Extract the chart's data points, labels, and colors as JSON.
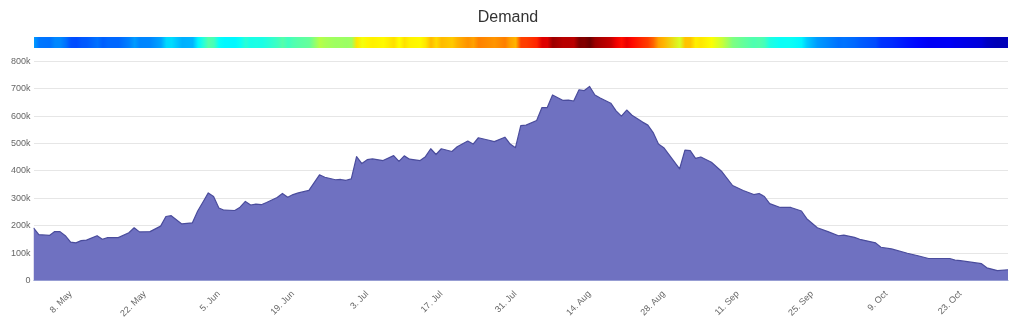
{
  "chart_data": {
    "type": "area",
    "title": "Demand",
    "x": [
      "--05-01",
      "--05-02",
      "--05-04",
      "--05-05",
      "--05-06",
      "--05-07",
      "--05-08",
      "--05-09",
      "--05-10",
      "--05-11",
      "--05-13",
      "--05-14",
      "--05-15",
      "--05-17",
      "--05-19",
      "--05-20",
      "--05-21",
      "--05-23",
      "--05-25",
      "--05-26",
      "--05-27",
      "--05-29",
      "--05-31",
      "--06-01",
      "--06-02",
      "--06-03",
      "--06-04",
      "--06-05",
      "--06-06",
      "--06-08",
      "--06-09",
      "--06-10",
      "--06-11",
      "--06-12",
      "--06-13",
      "--06-14",
      "--06-16",
      "--06-17",
      "--06-18",
      "--06-19",
      "--06-20",
      "--06-22",
      "--06-24",
      "--06-25",
      "--06-27",
      "--06-28",
      "--06-29",
      "--06-30",
      "--07-01",
      "--07-02",
      "--07-03",
      "--07-04",
      "--07-06",
      "--07-08",
      "--07-09",
      "--07-10",
      "--07-11",
      "--07-13",
      "--07-14",
      "--07-15",
      "--07-16",
      "--07-17",
      "--07-19",
      "--07-20",
      "--07-22",
      "--07-23",
      "--07-24",
      "--07-26",
      "--07-27",
      "--07-29",
      "--07-30",
      "--07-31",
      "--08-01",
      "--08-02",
      "--08-04",
      "--08-05",
      "--08-06",
      "--08-07",
      "--08-09",
      "--08-10",
      "--08-11",
      "--08-12",
      "--08-13",
      "--08-14",
      "--08-15",
      "--08-16",
      "--08-18",
      "--08-19",
      "--08-20",
      "--08-21",
      "--08-22",
      "--08-24",
      "--08-25",
      "--08-26",
      "--08-27",
      "--08-28",
      "--08-31",
      "--09-01",
      "--09-02",
      "--09-03",
      "--09-04",
      "--09-06",
      "--09-08",
      "--09-10",
      "--09-12",
      "--09-14",
      "--09-15",
      "--09-16",
      "--09-17",
      "--09-19",
      "--09-21",
      "--09-23",
      "--09-24",
      "--09-26",
      "--09-28",
      "--09-30",
      "--10-01",
      "--10-03",
      "--10-04",
      "--10-07",
      "--10-08",
      "--10-10",
      "--10-13",
      "--10-15",
      "--10-17",
      "--10-21",
      "--10-22",
      "--10-23",
      "--10-27",
      "--10-28",
      "--10-30",
      "--11-01"
    ],
    "series": [
      {
        "color": "#6f71c1",
        "values": [
          193000,
          168000,
          165000,
          179000,
          179000,
          164000,
          141000,
          138000,
          146000,
          148000,
          164000,
          151000,
          157000,
          157000,
          175000,
          193000,
          178000,
          179000,
          199000,
          234000,
          237000,
          207000,
          211000,
          254000,
          287000,
          320000,
          307000,
          265000,
          257000,
          256000,
          268000,
          289000,
          276000,
          279000,
          277000,
          285000,
          303000,
          318000,
          304000,
          314000,
          320000,
          329000,
          386000,
          377000,
          368000,
          369000,
          366000,
          371000,
          452000,
          427000,
          441000,
          444000,
          438000,
          456000,
          435000,
          455000,
          443000,
          438000,
          452000,
          481000,
          460000,
          481000,
          471000,
          488000,
          509000,
          498000,
          521000,
          512000,
          507000,
          523000,
          498000,
          485000,
          565000,
          567000,
          584000,
          631000,
          631000,
          677000,
          657000,
          658000,
          655000,
          696000,
          693000,
          708000,
          677000,
          666000,
          647000,
          619000,
          600000,
          622000,
          603000,
          578000,
          567000,
          540000,
          498000,
          485000,
          408000,
          476000,
          474000,
          446000,
          451000,
          432000,
          397000,
          347000,
          329000,
          314000,
          318000,
          307000,
          281000,
          267000,
          267000,
          254000,
          226000,
          193000,
          179000,
          164000,
          166000,
          158000,
          151000,
          138000,
          122000,
          116000,
          100000,
          91000,
          81000,
          81000,
          75000,
          73000,
          62000,
          47000,
          37000,
          40000
        ]
      }
    ],
    "xlim": [
      "--05-01",
      "--11-01"
    ],
    "xticks": [
      {
        "value": "--05-08",
        "label": "8. May"
      },
      {
        "value": "--05-22",
        "label": "22. May"
      },
      {
        "value": "--06-05",
        "label": "5. Jun"
      },
      {
        "value": "--06-19",
        "label": "19. Jun"
      },
      {
        "value": "--07-03",
        "label": "3. Jul"
      },
      {
        "value": "--07-17",
        "label": "17. Jul"
      },
      {
        "value": "--07-31",
        "label": "31. Jul"
      },
      {
        "value": "--08-14",
        "label": "14. Aug"
      },
      {
        "value": "--08-28",
        "label": "28. Aug"
      },
      {
        "value": "--09-11",
        "label": "11. Sep"
      },
      {
        "value": "--09-25",
        "label": "25. Sep"
      },
      {
        "value": "--10-09",
        "label": "9. Oct"
      },
      {
        "value": "--10-23",
        "label": "23. Oct"
      }
    ],
    "ylim": [
      0,
      800000
    ],
    "yticks": [
      0,
      {
        "value": 100000,
        "label": "100k"
      },
      {
        "value": 200000,
        "label": "200k"
      },
      {
        "value": 300000,
        "label": "300k"
      },
      {
        "value": 400000,
        "label": "400k"
      },
      {
        "value": 500000,
        "label": "500k"
      },
      {
        "value": 600000,
        "label": "600k"
      },
      {
        "value": 700000,
        "label": "700k"
      },
      {
        "value": 800000,
        "label": "800k"
      }
    ],
    "grid": "y",
    "legend": false
  }
}
